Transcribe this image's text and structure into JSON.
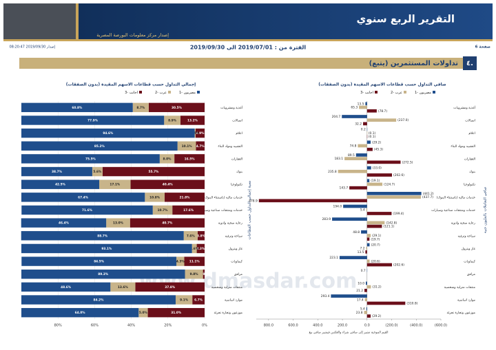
{
  "header": {
    "title": "التقرير الربع سنوي",
    "subtitle": "إصدار مركز معلومات البورصة المصرية",
    "page": "صفحة 6",
    "period": "الفترة من : 2019/07/01 الى 2019/09/30",
    "issued": "إصدار 2019/09/30 08:20:47"
  },
  "section": {
    "number": "٤.",
    "title": "تداولات المستثمرين (يتبع)"
  },
  "watermark": "www.dmasdar.com",
  "chart_data": [
    {
      "type": "stacked_bar",
      "title": "إجمالي التداول حسب قطاعات الاسهم المقيدة (بدون الصفقات)",
      "ylabel": "نسبة إجمالي التداول حسب القطاعات",
      "categories": [
        "أغذية ومشروبات",
        "اتصالات",
        "اعلام",
        "التشييد ومواد البناء",
        "العقارات",
        "بنوك",
        "تكنولوجيا",
        "خدمات مالية (باستثناء البنوك)",
        "خدمات ومنتجات صناعية وسيارات",
        "رعاية صحية وادوية",
        "سياحة وترفيه",
        "غاز وبترول",
        "كيماويات",
        "مرافق",
        "منتجات منزلية وشخصية",
        "موارد اساسية",
        "موزعون وتجارة تجزئة"
      ],
      "series": [
        {
          "name": "مصريون -1",
          "color": "#1f4e8c",
          "values": [
            60.8,
            77.9,
            94.6,
            85.2,
            75.5,
            38.7,
            42.5,
            67.4,
            71.6,
            46.4,
            88.7,
            93.1,
            84.5,
            89.3,
            48.6,
            84.2,
            64.0
          ],
          "value_labels": [
            "60.8%",
            "77.9%",
            "94.6%",
            "85.2%",
            "75.5%",
            "38.7%",
            "42.5%",
            "67.4%",
            "71.6%",
            "46.4%",
            "88.7%",
            "93.1%",
            "84.5%",
            "89.3%",
            "48.6%",
            "84.2%",
            "64.0%"
          ]
        },
        {
          "name": "عرب -2",
          "color": "#c8b48a",
          "values": [
            8.7,
            8.9,
            0.5,
            10.1,
            8.0,
            5.6,
            17.1,
            10.8,
            10.7,
            13.0,
            7.6,
            2.6,
            4.3,
            9.8,
            13.6,
            9.1,
            5.0
          ],
          "value_labels": [
            "8.7%",
            "8.9%",
            "0.5%",
            "10.1%",
            "8.0%",
            "5.6%",
            "17.1%",
            "10.8%",
            "10.7%",
            "13.0%",
            "7.6%",
            "2.6%",
            "4.3%",
            "9.8%",
            "13.6%",
            "9.1%",
            "5.0%"
          ]
        },
        {
          "name": "اجانب -3",
          "color": "#6b0f1a",
          "values": [
            30.5,
            13.2,
            4.9,
            4.7,
            16.5,
            55.7,
            40.4,
            21.8,
            17.6,
            40.7,
            3.8,
            4.3,
            11.1,
            0.9,
            37.8,
            6.7,
            31.0
          ],
          "value_labels": [
            "30.5%",
            "13.2%",
            "4.9%",
            "4.7%",
            "16.5%",
            "55.7%",
            "40.4%",
            "21.8%",
            "17.6%",
            "40.7%",
            "3.8%",
            "4.3%",
            "11.1%",
            "0.9%",
            "37.8%",
            "6.7%",
            "31.0%"
          ]
        }
      ],
      "xlim": [
        0,
        100
      ],
      "x_reversed": true,
      "xticks": [
        {
          "value": 80,
          "label": "80%"
        },
        {
          "value": 60,
          "label": "60%"
        },
        {
          "value": 40,
          "label": "40%"
        },
        {
          "value": 20,
          "label": "20%"
        },
        {
          "value": 0,
          "label": "0%"
        }
      ],
      "grid": true
    },
    {
      "type": "grouped_bar",
      "title": "صافي التداول حسب قطاعات الاسهم المقيدة (بدون الصفقات)",
      "ylabel": "صافي التعاملات بالمليون جنيه",
      "note": "القيم الموجبة تشير إلى صافي شراء والعكس فيشير صافي بيع",
      "categories": [
        "أغذية ومشروبات",
        "اتصالات",
        "اعلام",
        "التشييد ومواد البناء",
        "العقارات",
        "بنوك",
        "تكنولوجيا",
        "خدمات مالية (باستثناء البنوك)",
        "خدمات ومنتجات صناعية وسيارات",
        "رعاية صحية وادوية",
        "سياحة وترفيه",
        "غاز وبترول",
        "كيماويات",
        "مرافق",
        "منتجات منزلية وشخصية",
        "موارد اساسية",
        "موزعون وتجارة تجزئة"
      ],
      "series": [
        {
          "name": "مصريون -1",
          "color": "#1f4e8c",
          "values": [
            13.5,
            204.7,
            0.2,
            -29.2,
            89.5,
            -33.0,
            -19.1,
            -441.2,
            194.0,
            283.9,
            48.8,
            -20.7,
            223.1,
            0.7,
            10.0,
            293.4,
            5.4
          ],
          "value_labels": [
            "13.5",
            "204.7",
            "0.2",
            "(29.2)",
            "89.5",
            "(33.0)",
            "(19.1)",
            "(441.2)",
            "194.0",
            "283.9",
            "48.8",
            "(20.7)",
            "223.1",
            "0.7",
            "10.0",
            "293.4",
            "5.4"
          ]
        },
        {
          "name": "عرب -2",
          "color": "#c8b48a",
          "values": [
            65.3,
            -237.0,
            -0.1,
            74.8,
            183.1,
            235.8,
            -124.7,
            -437.7,
            5.4,
            -142.8,
            -29.1,
            7.2,
            -20.6,
            null,
            -31.2,
            17.4,
            23.8
          ],
          "value_labels": [
            "65.3",
            "(237.0)",
            "(0.1)",
            "74.8",
            "183.1",
            "235.8",
            "(124.7)",
            "(437.7)",
            "5.4",
            "(142.8)",
            "(29.1)",
            "7.2",
            "(20.6)",
            null,
            "(31.2)",
            "17.4",
            "23.8"
          ]
        },
        {
          "name": "اجانب -3",
          "color": "#6b0f1a",
          "values": [
            -78.7,
            32.2,
            -0.1,
            -45.3,
            -272.5,
            -202.6,
            143.7,
            878.9,
            -199.4,
            -121.1,
            -19.7,
            13.5,
            -202.6,
            null,
            21.2,
            -310.8,
            -29.2
          ],
          "value_labels": [
            "(78.7)",
            "32.2",
            "(0.1)",
            "(45.3)",
            "(272.5)",
            "(202.6)",
            "143.7",
            "878.9",
            "(199.4)",
            "(121.1)",
            "(19.7)",
            "13.5",
            "(202.6)",
            null,
            "21.2",
            "(310.8)",
            "(29.2)"
          ]
        }
      ],
      "xlim": [
        -600,
        900
      ],
      "x_reversed": true,
      "xticks": [
        {
          "value": 800,
          "label": "800.0"
        },
        {
          "value": 600,
          "label": "600.0"
        },
        {
          "value": 400,
          "label": "400.0"
        },
        {
          "value": 200,
          "label": "200.0"
        },
        {
          "value": 0,
          "label": "0.0"
        },
        {
          "value": -200,
          "label": "(200.0)"
        },
        {
          "value": -400,
          "label": "(400.0)"
        },
        {
          "value": -600,
          "label": "(600.0)"
        }
      ]
    }
  ]
}
